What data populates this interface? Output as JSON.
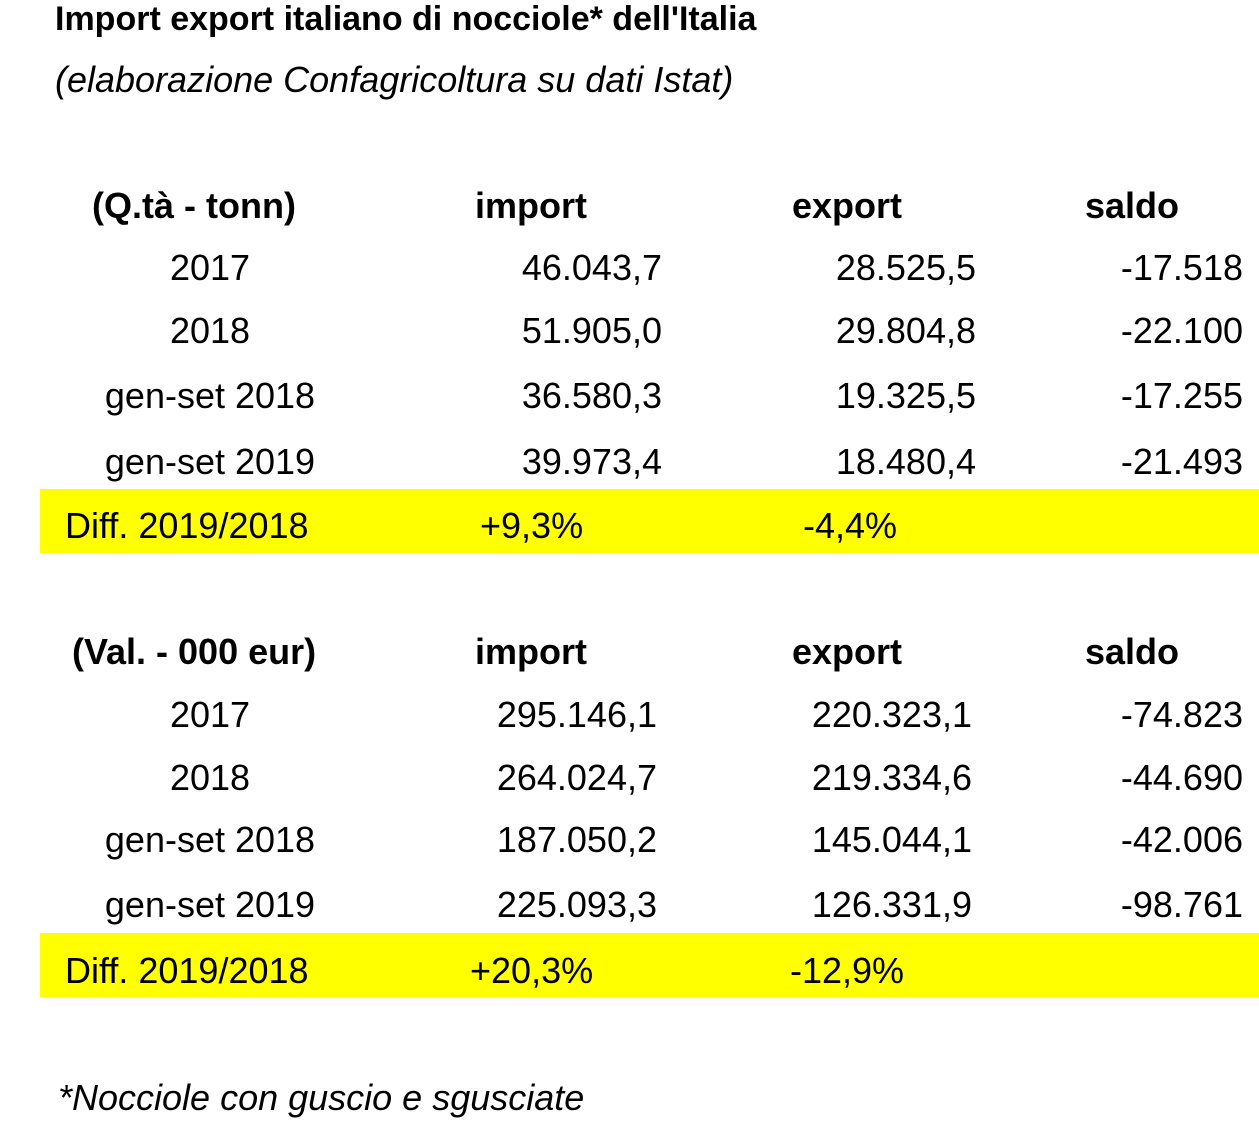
{
  "title": "Import export italiano di nocciole* dell'Italia",
  "subtitle": "(elaborazione Confagricoltura su dati Istat)",
  "highlight_color": "#ffff00",
  "tables": [
    {
      "headers": [
        "(Q.tà - tonn)",
        "import",
        "export",
        "saldo"
      ],
      "rows": [
        [
          "2017",
          "46.043,7",
          "28.525,5",
          "-17.518"
        ],
        [
          "2018",
          "51.905,0",
          "29.804,8",
          "-22.100"
        ],
        [
          "gen-set 2018",
          "36.580,3",
          "19.325,5",
          "-17.255"
        ],
        [
          "gen-set 2019",
          "39.973,4",
          "18.480,4",
          "-21.493"
        ]
      ],
      "diff": [
        "Diff. 2019/2018",
        "+9,3%",
        "-4,4%"
      ]
    },
    {
      "headers": [
        "(Val. - 000 eur)",
        "import",
        "export",
        "saldo"
      ],
      "rows": [
        [
          "2017",
          "295.146,1",
          "220.323,1",
          "-74.823"
        ],
        [
          "2018",
          "264.024,7",
          "219.334,6",
          "-44.690"
        ],
        [
          "gen-set 2018",
          "187.050,2",
          "145.044,1",
          "-42.006"
        ],
        [
          "gen-set 2019",
          "225.093,3",
          "126.331,9",
          "-98.761"
        ]
      ],
      "diff": [
        "Diff. 2019/2018",
        "+20,3%",
        "-12,9%"
      ]
    }
  ],
  "footnote": "*Nocciole con guscio e sgusciate"
}
